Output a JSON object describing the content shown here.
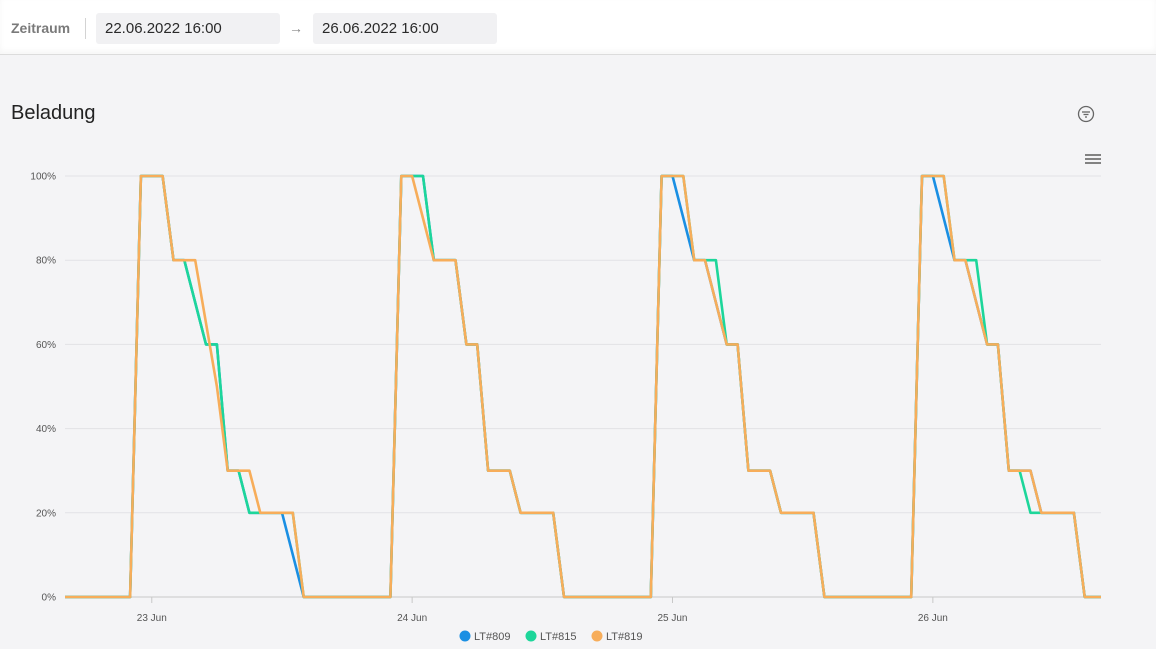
{
  "filter": {
    "label": "Zeitraum",
    "start": "22.06.2022 16:00",
    "arrow": "→",
    "end": "26.06.2022 16:00"
  },
  "section": {
    "title": "Beladung"
  },
  "icons": {
    "filter": "filter-icon",
    "menu": "hamburger-menu-icon"
  },
  "chart_data": {
    "type": "line",
    "title": "Beladung",
    "xlabel": "",
    "ylabel": "",
    "ylim": [
      0,
      100
    ],
    "xlim_hours": [
      0,
      95.5
    ],
    "yticks": [
      0,
      20,
      40,
      60,
      80,
      100
    ],
    "ytick_labels": [
      "0%",
      "20%",
      "40%",
      "60%",
      "80%",
      "100%"
    ],
    "xtick_hours": [
      8,
      32,
      56,
      80
    ],
    "xtick_labels": [
      "23 Jun",
      "24 Jun",
      "25 Jun",
      "26 Jun"
    ],
    "grid": true,
    "legend_position": "bottom-center",
    "series": [
      {
        "name": "LT#809",
        "color": "#1a8fe3",
        "points": [
          [
            0,
            0
          ],
          [
            6,
            0
          ],
          [
            7,
            100
          ],
          [
            9,
            100
          ],
          [
            10,
            80
          ],
          [
            11,
            80
          ],
          [
            13,
            60
          ],
          [
            14,
            60
          ],
          [
            15,
            30
          ],
          [
            16,
            30
          ],
          [
            17,
            20
          ],
          [
            20,
            20
          ],
          [
            22,
            0
          ],
          [
            30,
            0
          ],
          [
            31,
            100
          ],
          [
            33,
            100
          ],
          [
            34,
            80
          ],
          [
            36,
            80
          ],
          [
            37,
            60
          ],
          [
            38,
            60
          ],
          [
            39,
            30
          ],
          [
            41,
            30
          ],
          [
            42,
            20
          ],
          [
            45,
            20
          ],
          [
            46,
            0
          ],
          [
            54,
            0
          ],
          [
            55,
            100
          ],
          [
            56,
            100
          ],
          [
            58,
            80
          ],
          [
            59,
            80
          ],
          [
            61,
            60
          ],
          [
            62,
            60
          ],
          [
            63,
            30
          ],
          [
            65,
            30
          ],
          [
            66,
            20
          ],
          [
            69,
            20
          ],
          [
            70,
            0
          ],
          [
            78,
            0
          ],
          [
            79,
            100
          ],
          [
            80,
            100
          ],
          [
            82,
            80
          ],
          [
            83,
            80
          ],
          [
            85,
            60
          ],
          [
            86,
            60
          ],
          [
            87,
            30
          ],
          [
            89,
            30
          ],
          [
            90,
            20
          ],
          [
            93,
            20
          ],
          [
            94,
            0
          ],
          [
            95.5,
            0
          ]
        ]
      },
      {
        "name": "LT#815",
        "color": "#1dd69a",
        "points": [
          [
            0,
            0
          ],
          [
            6,
            0
          ],
          [
            7,
            100
          ],
          [
            9,
            100
          ],
          [
            10,
            80
          ],
          [
            11,
            80
          ],
          [
            13,
            60
          ],
          [
            14,
            60
          ],
          [
            15,
            30
          ],
          [
            16,
            30
          ],
          [
            17,
            20
          ],
          [
            21,
            20
          ],
          [
            22,
            0
          ],
          [
            30,
            0
          ],
          [
            31,
            100
          ],
          [
            33,
            100
          ],
          [
            34,
            80
          ],
          [
            36,
            80
          ],
          [
            37,
            60
          ],
          [
            38,
            60
          ],
          [
            39,
            30
          ],
          [
            41,
            30
          ],
          [
            42,
            20
          ],
          [
            45,
            20
          ],
          [
            46,
            0
          ],
          [
            54,
            0
          ],
          [
            55,
            100
          ],
          [
            57,
            100
          ],
          [
            58,
            80
          ],
          [
            60,
            80
          ],
          [
            61,
            60
          ],
          [
            62,
            60
          ],
          [
            63,
            30
          ],
          [
            65,
            30
          ],
          [
            66,
            20
          ],
          [
            69,
            20
          ],
          [
            70,
            0
          ],
          [
            78,
            0
          ],
          [
            79,
            100
          ],
          [
            81,
            100
          ],
          [
            82,
            80
          ],
          [
            84,
            80
          ],
          [
            85,
            60
          ],
          [
            86,
            60
          ],
          [
            87,
            30
          ],
          [
            88,
            30
          ],
          [
            89,
            20
          ],
          [
            93,
            20
          ],
          [
            94,
            0
          ],
          [
            95.5,
            0
          ]
        ]
      },
      {
        "name": "LT#819",
        "color": "#f7ad5a",
        "points": [
          [
            0,
            0
          ],
          [
            6,
            0
          ],
          [
            7,
            100
          ],
          [
            9,
            100
          ],
          [
            10,
            80
          ],
          [
            12,
            80
          ],
          [
            14,
            50
          ],
          [
            15,
            30
          ],
          [
            17,
            30
          ],
          [
            18,
            20
          ],
          [
            21,
            20
          ],
          [
            22,
            0
          ],
          [
            30,
            0
          ],
          [
            31,
            100
          ],
          [
            32,
            100
          ],
          [
            34,
            80
          ],
          [
            36,
            80
          ],
          [
            37,
            60
          ],
          [
            38,
            60
          ],
          [
            39,
            30
          ],
          [
            41,
            30
          ],
          [
            42,
            20
          ],
          [
            45,
            20
          ],
          [
            46,
            0
          ],
          [
            54,
            0
          ],
          [
            55,
            100
          ],
          [
            57,
            100
          ],
          [
            58,
            80
          ],
          [
            59,
            80
          ],
          [
            61,
            60
          ],
          [
            62,
            60
          ],
          [
            63,
            30
          ],
          [
            65,
            30
          ],
          [
            66,
            20
          ],
          [
            69,
            20
          ],
          [
            70,
            0
          ],
          [
            78,
            0
          ],
          [
            79,
            100
          ],
          [
            81,
            100
          ],
          [
            82,
            80
          ],
          [
            83,
            80
          ],
          [
            85,
            60
          ],
          [
            86,
            60
          ],
          [
            87,
            30
          ],
          [
            89,
            30
          ],
          [
            90,
            20
          ],
          [
            93,
            20
          ],
          [
            94,
            0
          ],
          [
            95.5,
            0
          ]
        ]
      }
    ]
  }
}
